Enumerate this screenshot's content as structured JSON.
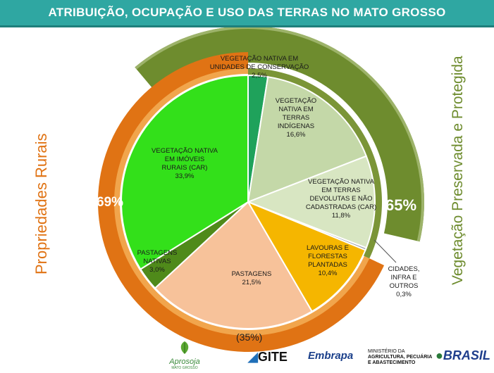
{
  "title": "ATRIBUIÇÃO, OCUPAÇÃO E USO DAS TERRAS NO MATO GROSSO",
  "side_labels": {
    "left": "Propriedades Rurais",
    "right": "Vegetação Preservada e Protegida"
  },
  "group_percentages": {
    "rural": "69%",
    "preserved": "65%",
    "bottom": "(35%)"
  },
  "chart_data": {
    "type": "pie",
    "title": "ATRIBUIÇÃO, OCUPAÇÃO E USO DAS TERRAS NO MATO GROSSO",
    "slices": [
      {
        "label": "VEGETAÇÃO NATIVA EM UNIDADES DE CONSERVAÇÃO",
        "value": 2.5,
        "display": "2,5%",
        "color": "#1fa25b"
      },
      {
        "label": "VEGETAÇÃO NATIVA EM TERRAS INDÍGENAS",
        "value": 16.6,
        "display": "16,6%",
        "color": "#c4d8a8"
      },
      {
        "label": "VEGETAÇÃO NATIVA EM TERRAS DEVOLUTAS E NÃO CADASTRADAS (CAR)",
        "value": 11.8,
        "display": "11,8%",
        "color": "#d8e6c2"
      },
      {
        "label": "CIDADES, INFRA E OUTROS",
        "value": 0.3,
        "display": "0,3%",
        "color": "#9aa0a6"
      },
      {
        "label": "LAVOURAS E FLORESTAS PLANTADAS",
        "value": 10.4,
        "display": "10,4%",
        "color": "#f5b600"
      },
      {
        "label": "PASTAGENS",
        "value": 21.5,
        "display": "21,5%",
        "color": "#f7c29a"
      },
      {
        "label": "PASTAGENS NATIVAS",
        "value": 3.0,
        "display": "3,0%",
        "color": "#4f8a1a"
      },
      {
        "label": "VEGETAÇÃO NATIVA EM IMÓVEIS RURAIS (CAR)",
        "value": 33.9,
        "display": "33,9%",
        "color": "#33e01a"
      }
    ],
    "outer_rings": [
      {
        "name": "Propriedades Rurais",
        "value": 69,
        "color": "#e07314"
      },
      {
        "name": "Vegetação Preservada e Protegida",
        "value": 65,
        "color": "#6e8c2e"
      }
    ]
  },
  "footer": {
    "aprosoja": "Aprosoja",
    "aprosoja_sub": "MATO GROSSO",
    "gite": "GITE",
    "embrapa": "Embrapa",
    "ministerio_line1": "MINISTÉRIO DA",
    "ministerio_line2": "AGRICULTURA, PECUÁRIA",
    "ministerio_line3": "E ABASTECIMENTO",
    "brasil": "BRASIL"
  }
}
